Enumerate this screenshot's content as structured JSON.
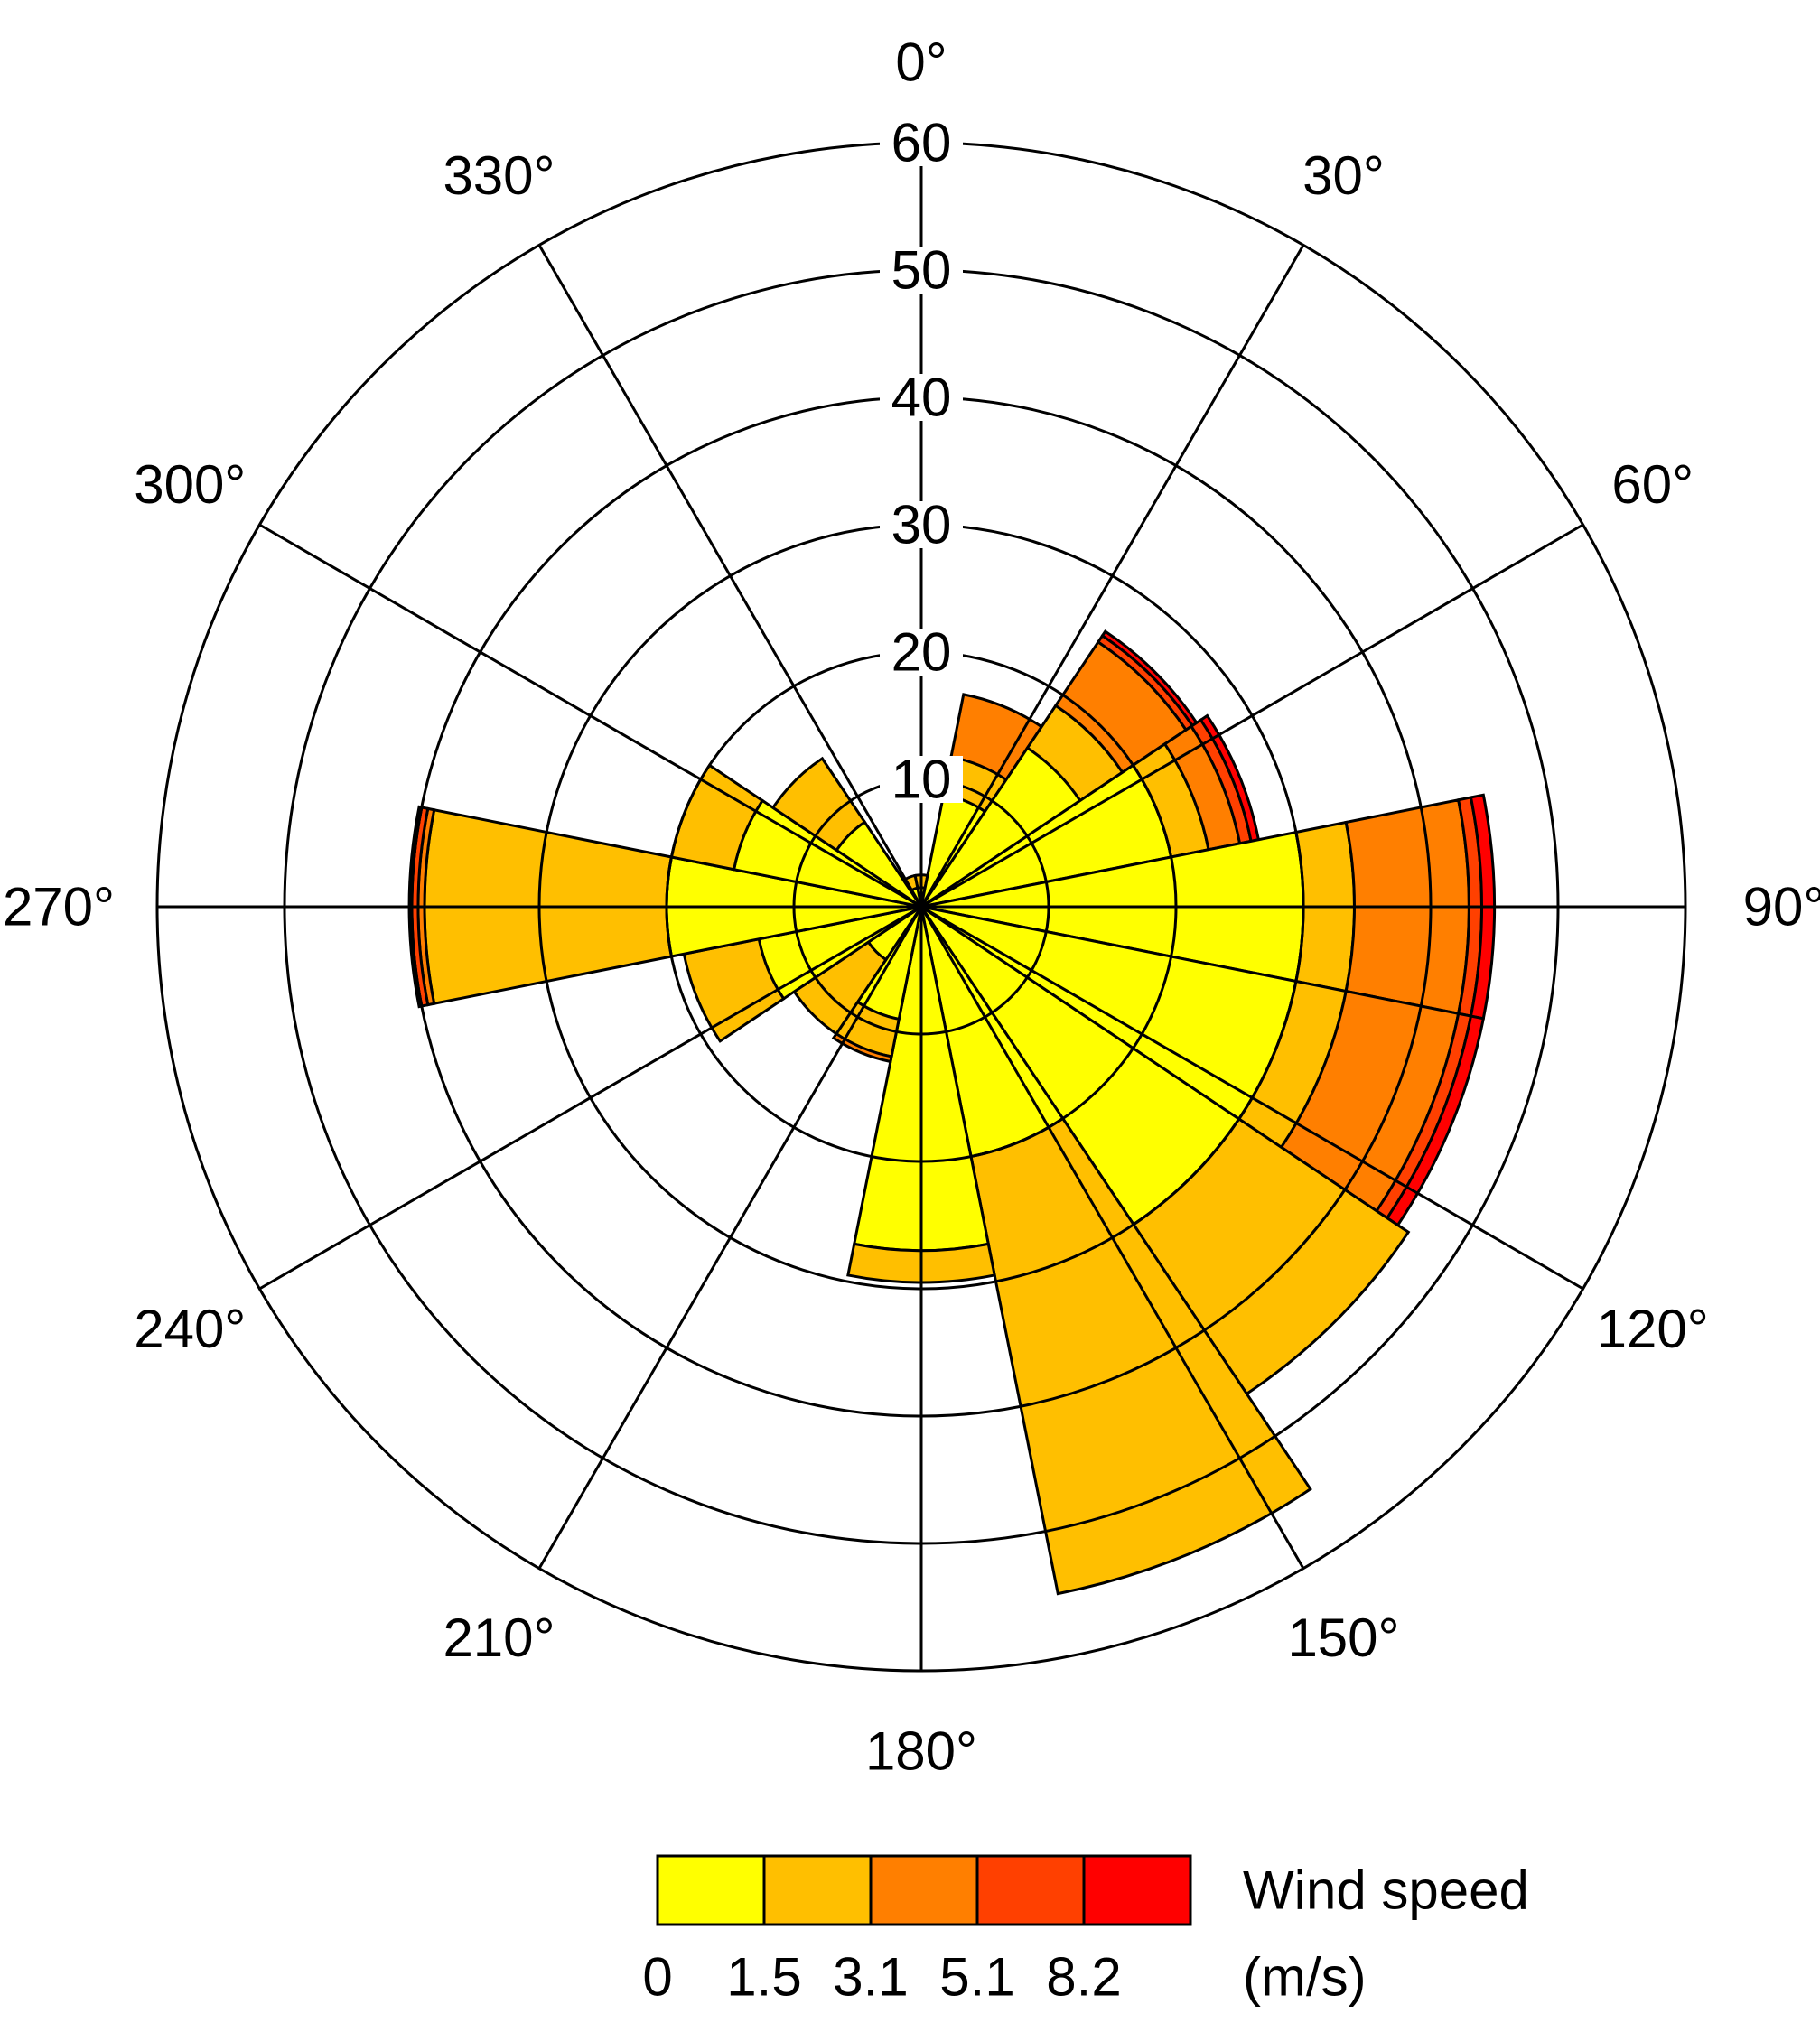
{
  "chart_data": {
    "type": "wind-rose",
    "direction_labels": [
      {
        "deg": 0,
        "label": "0°"
      },
      {
        "deg": 30,
        "label": "30°"
      },
      {
        "deg": 60,
        "label": "60°"
      },
      {
        "deg": 90,
        "label": "90°"
      },
      {
        "deg": 120,
        "label": "120°"
      },
      {
        "deg": 150,
        "label": "150°"
      },
      {
        "deg": 180,
        "label": "180°"
      },
      {
        "deg": 210,
        "label": "210°"
      },
      {
        "deg": 240,
        "label": "240°"
      },
      {
        "deg": 270,
        "label": "270°"
      },
      {
        "deg": 300,
        "label": "300°"
      },
      {
        "deg": 330,
        "label": "330°"
      }
    ],
    "radial_ticks": [
      10,
      20,
      30,
      40,
      50,
      60
    ],
    "radial_tick_labels": [
      "10",
      "20",
      "30",
      "40",
      "50",
      "60"
    ],
    "rmax": 60,
    "sector_width_deg": 22.5,
    "speed_bin_colors": [
      "#ffff00",
      "#ffbf00",
      "#ff7f00",
      "#ff4000",
      "#ff0000"
    ],
    "legend": {
      "title": "Wind speed",
      "unit": "(m/s)",
      "bin_labels": [
        "0",
        "1.5",
        "3.1",
        "5.1",
        "8.2"
      ]
    },
    "sectors": [
      {
        "center_deg": 0,
        "cumulative": [
          1.5,
          2.5
        ]
      },
      {
        "center_deg": 22.5,
        "cumulative": [
          9,
          12,
          17
        ]
      },
      {
        "center_deg": 45,
        "cumulative": [
          15,
          19,
          25,
          25.6,
          26
        ]
      },
      {
        "center_deg": 67.5,
        "cumulative": [
          20,
          23,
          25.5,
          26.4,
          27
        ]
      },
      {
        "center_deg": 90,
        "cumulative": [
          30,
          34,
          43,
          44,
          45
        ]
      },
      {
        "center_deg": 112.5,
        "cumulative": [
          30,
          34,
          43,
          44,
          45
        ]
      },
      {
        "center_deg": 135,
        "cumulative": [
          30,
          46,
          46,
          46,
          46
        ]
      },
      {
        "center_deg": 157.5,
        "cumulative": [
          20,
          55,
          55,
          55,
          55
        ]
      },
      {
        "center_deg": 180,
        "cumulative": [
          27,
          29.5
        ]
      },
      {
        "center_deg": 202.5,
        "cumulative": [
          9,
          12,
          12.4
        ]
      },
      {
        "center_deg": 225,
        "cumulative": [
          5,
          12,
          12
        ]
      },
      {
        "center_deg": 247.5,
        "cumulative": [
          13,
          19,
          19
        ]
      },
      {
        "center_deg": 270,
        "cumulative": [
          20,
          39,
          39.5,
          40,
          40.2
        ]
      },
      {
        "center_deg": 292.5,
        "cumulative": [
          15,
          20,
          20
        ]
      },
      {
        "center_deg": 315,
        "cumulative": [
          8,
          14,
          14
        ]
      },
      {
        "center_deg": 337.5,
        "cumulative": [
          1.5,
          2.5
        ]
      }
    ]
  }
}
